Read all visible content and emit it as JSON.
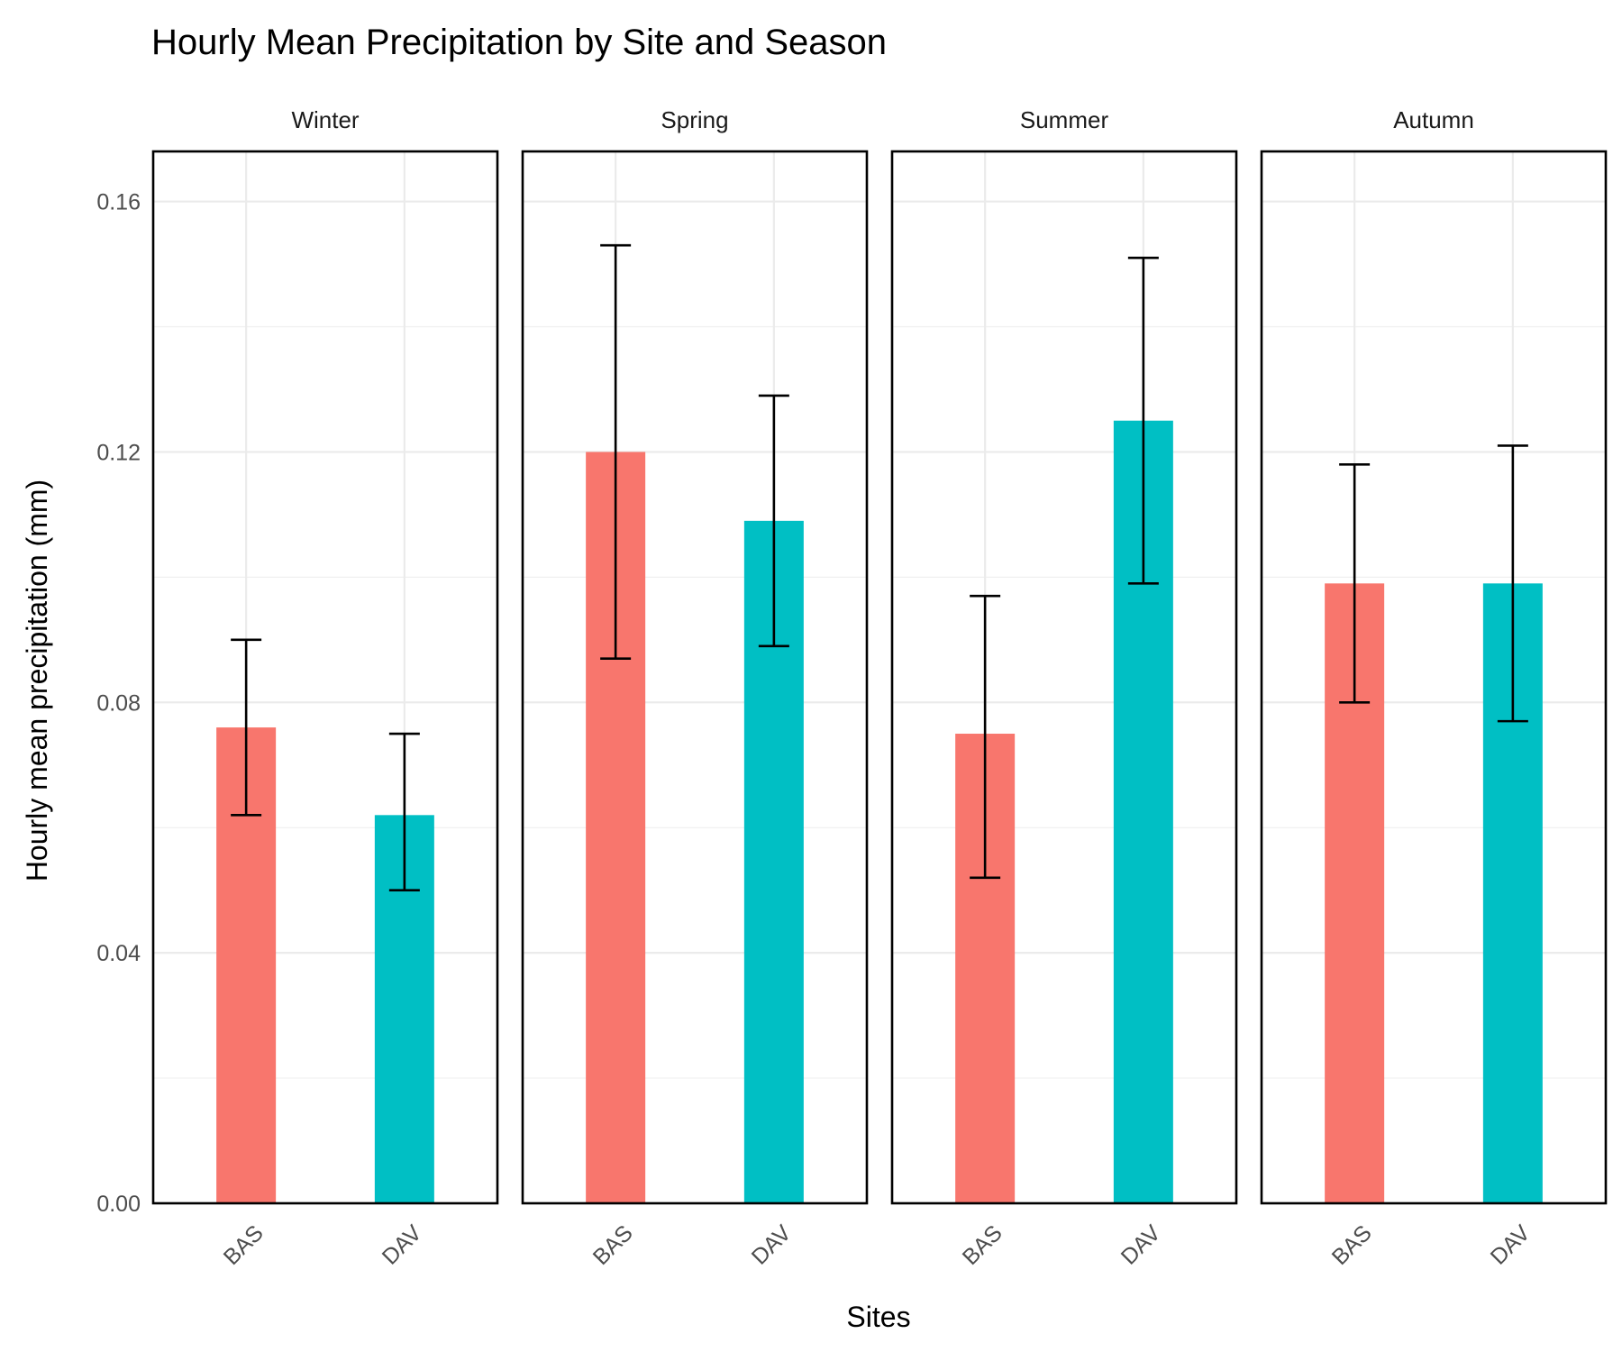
{
  "chart_data": {
    "type": "bar",
    "title": "Hourly Mean Precipitation by Site and Season",
    "xlabel": "Sites",
    "ylabel": "Hourly mean precipitation (mm)",
    "ylim": [
      0,
      0.168
    ],
    "y_ticks": [
      "0.00",
      "0.04",
      "0.08",
      "0.12",
      "0.16"
    ],
    "y_tick_values": [
      0,
      0.04,
      0.08,
      0.12,
      0.16
    ],
    "y_minor_values": [
      0.02,
      0.06,
      0.1,
      0.14
    ],
    "categories": [
      "BAS",
      "DAV"
    ],
    "colors": {
      "BAS": "#F8766D",
      "DAV": "#00BFC4"
    },
    "grid": true,
    "panels": [
      {
        "season": "Winter",
        "bars": [
          {
            "site": "BAS",
            "value": 0.076,
            "err_low": 0.062,
            "err_high": 0.09
          },
          {
            "site": "DAV",
            "value": 0.062,
            "err_low": 0.05,
            "err_high": 0.075
          }
        ]
      },
      {
        "season": "Spring",
        "bars": [
          {
            "site": "BAS",
            "value": 0.12,
            "err_low": 0.087,
            "err_high": 0.153
          },
          {
            "site": "DAV",
            "value": 0.109,
            "err_low": 0.089,
            "err_high": 0.129
          }
        ]
      },
      {
        "season": "Summer",
        "bars": [
          {
            "site": "BAS",
            "value": 0.075,
            "err_low": 0.052,
            "err_high": 0.097
          },
          {
            "site": "DAV",
            "value": 0.125,
            "err_low": 0.099,
            "err_high": 0.151
          }
        ]
      },
      {
        "season": "Autumn",
        "bars": [
          {
            "site": "BAS",
            "value": 0.099,
            "err_low": 0.08,
            "err_high": 0.118
          },
          {
            "site": "DAV",
            "value": 0.099,
            "err_low": 0.077,
            "err_high": 0.121
          }
        ]
      }
    ]
  }
}
